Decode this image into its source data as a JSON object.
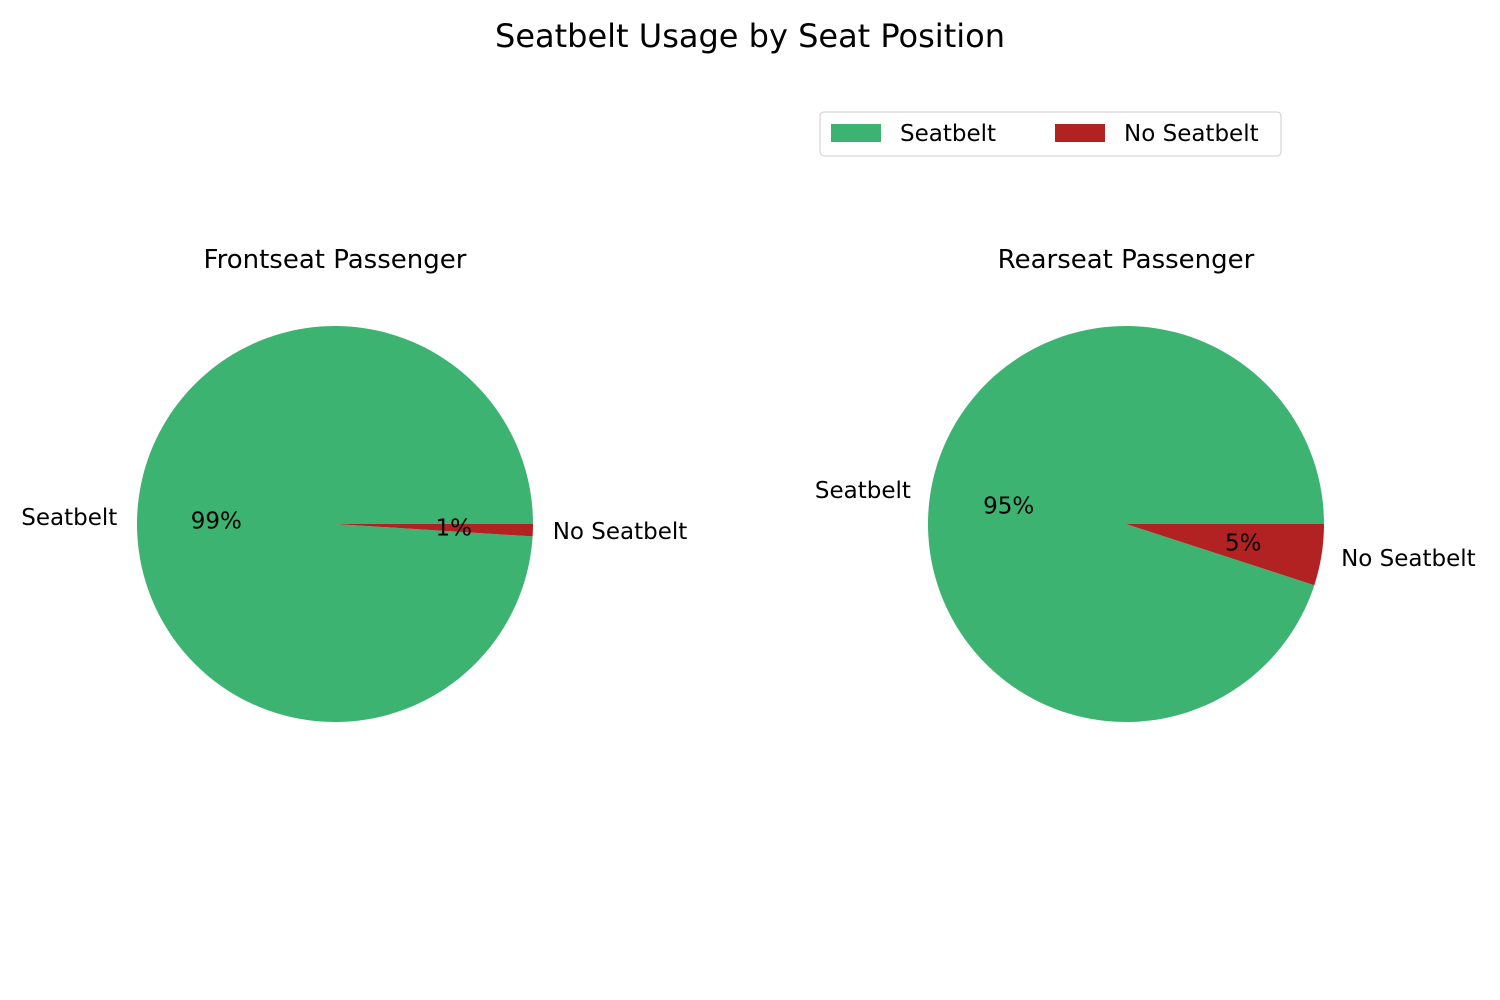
{
  "title": "Seatbelt Usage by Seat Position",
  "colors": {
    "seatbelt": "#3cb371",
    "no_seatbelt": "#b22222"
  },
  "legend": {
    "placement": "upper-right",
    "entries": [
      {
        "label": "Seatbelt",
        "color": "#3cb371"
      },
      {
        "label": "No Seatbelt",
        "color": "#b22222"
      }
    ]
  },
  "chart_data": [
    {
      "type": "pie",
      "title": "Frontseat Passenger",
      "categories": [
        "Seatbelt",
        "No Seatbelt"
      ],
      "values": [
        99,
        1
      ],
      "value_labels": [
        "99%",
        "1%"
      ],
      "colors": [
        "#3cb371",
        "#b22222"
      ]
    },
    {
      "type": "pie",
      "title": "Rearseat Passenger",
      "categories": [
        "Seatbelt",
        "No Seatbelt"
      ],
      "values": [
        95,
        5
      ],
      "value_labels": [
        "95%",
        "5%"
      ],
      "colors": [
        "#3cb371",
        "#b22222"
      ]
    }
  ]
}
